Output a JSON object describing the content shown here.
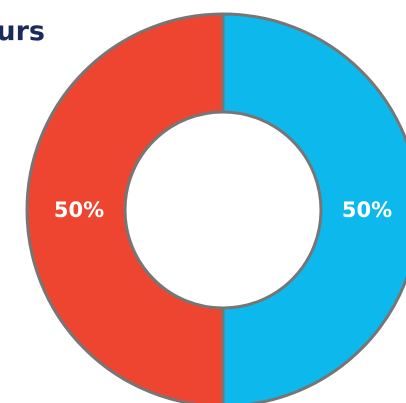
{
  "title": "Ours",
  "chart_data": {
    "type": "pie",
    "donut": true,
    "categories": [
      "",
      ""
    ],
    "values": [
      50,
      50
    ],
    "data_labels": [
      "50%",
      "50%"
    ],
    "colors": [
      "#0db8ec",
      "#ed4530"
    ],
    "stroke_color": "#767676"
  }
}
